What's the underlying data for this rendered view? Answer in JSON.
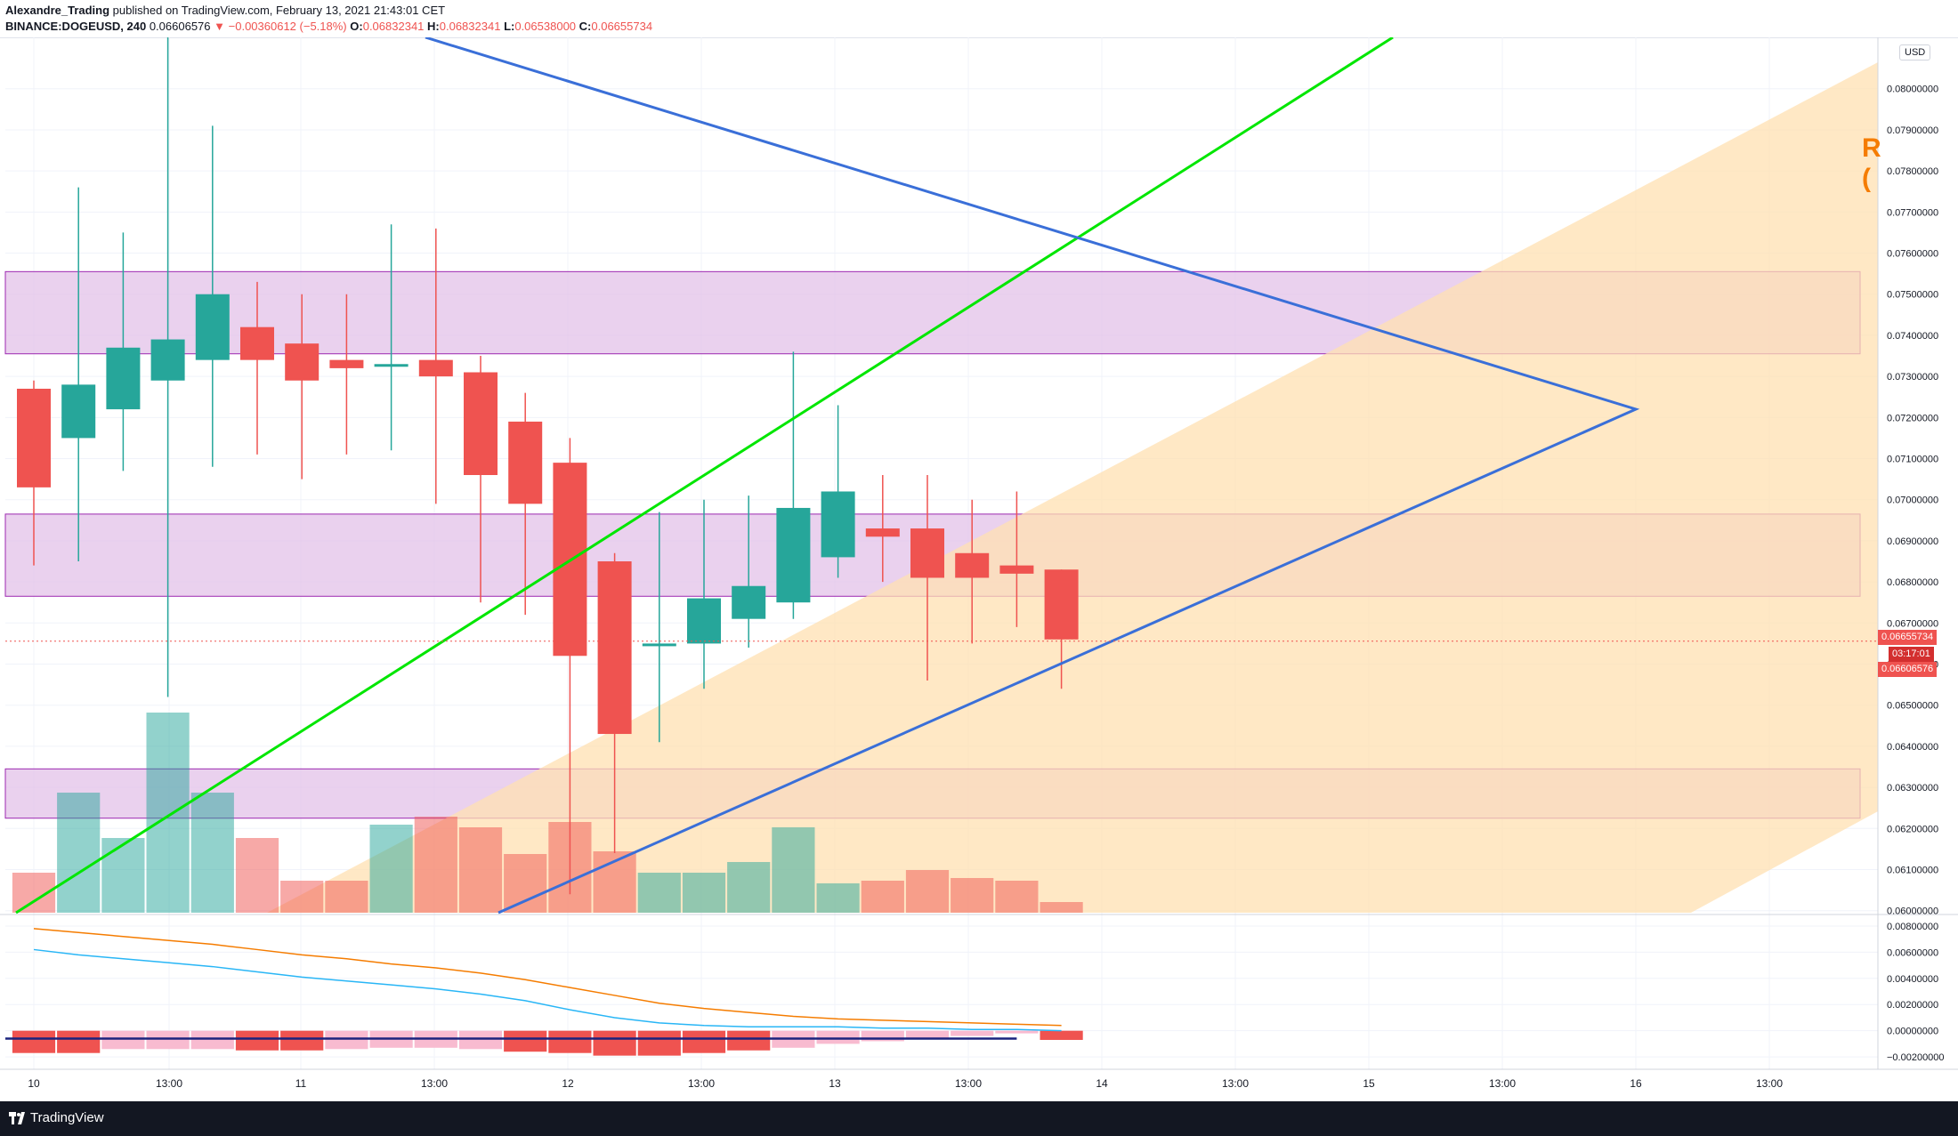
{
  "header": {
    "author": "Alexandre_Trading",
    "published_text": "published on TradingView.com, February 13, 2021 21:43:01 CET",
    "symbol": "BINANCE:DOGEUSD, 240",
    "last": "0.06606576",
    "change": "−0.00360612 (−5.18%)",
    "o_label": "O:",
    "o_value": "0.06832341",
    "h_label": "H:",
    "h_value": "0.06832341",
    "l_label": "L:",
    "l_value": "0.06538000",
    "c_label": "C:",
    "c_value": "0.06655734"
  },
  "currency": "USD",
  "side_label": "R\n(",
  "price_tags": [
    "0.06655734",
    "03:17:01",
    "0.06606576"
  ],
  "footer": {
    "brand": "TradingView"
  },
  "colors": {
    "up": "#26a69a",
    "down": "#ef5350",
    "zone": "#e1bee7",
    "zone_border": "#9c27b0",
    "channel": "#ffe0b2",
    "trend_green": "#00e600",
    "trend_blue": "#3a6fd8",
    "ma_orange": "#f57c00",
    "ma_blue": "#29b6f6"
  },
  "chart_data": {
    "type": "candlestick",
    "price_axis": {
      "min": 0.0599,
      "max": 0.081,
      "ticks": [
        "0.08000000",
        "0.07900000",
        "0.07800000",
        "0.07700000",
        "0.07600000",
        "0.07500000",
        "0.07400000",
        "0.07300000",
        "0.07200000",
        "0.07100000",
        "0.07000000",
        "0.06900000",
        "0.06800000",
        "0.06700000",
        "0.06600000",
        "0.06500000",
        "0.06400000",
        "0.06300000",
        "0.06200000",
        "0.06100000",
        "0.06000000"
      ]
    },
    "time_axis": [
      "10",
      "13:00",
      "11",
      "13:00",
      "12",
      "13:00",
      "13",
      "13:00",
      "14",
      "13:00",
      "15",
      "13:00",
      "16",
      "13:00"
    ],
    "candles": [
      {
        "o": 0.0727,
        "h": 0.0729,
        "l": 0.0684,
        "c": 0.0703
      },
      {
        "o": 0.0715,
        "h": 0.0776,
        "l": 0.0685,
        "c": 0.0728
      },
      {
        "o": 0.0722,
        "h": 0.0765,
        "l": 0.0707,
        "c": 0.0737
      },
      {
        "o": 0.0729,
        "h": 0.0822,
        "l": 0.0652,
        "c": 0.0739
      },
      {
        "o": 0.0734,
        "h": 0.0791,
        "l": 0.0708,
        "c": 0.075
      },
      {
        "o": 0.0742,
        "h": 0.0753,
        "l": 0.0711,
        "c": 0.0734
      },
      {
        "o": 0.0738,
        "h": 0.075,
        "l": 0.0705,
        "c": 0.0729
      },
      {
        "o": 0.0734,
        "h": 0.075,
        "l": 0.0711,
        "c": 0.0732
      },
      {
        "o": 0.0733,
        "h": 0.0767,
        "l": 0.0712,
        "c": 0.0733
      },
      {
        "o": 0.0734,
        "h": 0.0766,
        "l": 0.0699,
        "c": 0.073
      },
      {
        "o": 0.0731,
        "h": 0.0735,
        "l": 0.0675,
        "c": 0.0706
      },
      {
        "o": 0.0719,
        "h": 0.0726,
        "l": 0.0672,
        "c": 0.0699
      },
      {
        "o": 0.0709,
        "h": 0.0715,
        "l": 0.0604,
        "c": 0.0662
      },
      {
        "o": 0.0685,
        "h": 0.0687,
        "l": 0.0614,
        "c": 0.0643
      },
      {
        "o": 0.0665,
        "h": 0.0697,
        "l": 0.0641,
        "c": 0.0665
      },
      {
        "o": 0.0665,
        "h": 0.07,
        "l": 0.0654,
        "c": 0.0676
      },
      {
        "o": 0.0671,
        "h": 0.0701,
        "l": 0.0664,
        "c": 0.0679
      },
      {
        "o": 0.0675,
        "h": 0.0736,
        "l": 0.0671,
        "c": 0.0698
      },
      {
        "o": 0.0686,
        "h": 0.0723,
        "l": 0.0681,
        "c": 0.0702
      },
      {
        "o": 0.0693,
        "h": 0.0706,
        "l": 0.068,
        "c": 0.0691
      },
      {
        "o": 0.0693,
        "h": 0.0706,
        "l": 0.0656,
        "c": 0.0681
      },
      {
        "o": 0.0687,
        "h": 0.07,
        "l": 0.0665,
        "c": 0.0681
      },
      {
        "o": 0.0684,
        "h": 0.0702,
        "l": 0.0669,
        "c": 0.0682
      },
      {
        "o": 0.0683,
        "h": 0.0683,
        "l": 0.0654,
        "c": 0.0666
      }
    ],
    "volume": [
      0.15,
      0.45,
      0.28,
      0.75,
      0.45,
      0.28,
      0.12,
      0.12,
      0.33,
      0.36,
      0.32,
      0.22,
      0.34,
      0.23,
      0.15,
      0.15,
      0.19,
      0.32,
      0.11,
      0.12,
      0.16,
      0.13,
      0.12,
      0.04
    ],
    "zones": [
      [
        0.07355,
        0.07555
      ],
      [
        0.06765,
        0.06965
      ],
      [
        0.06225,
        0.06345
      ]
    ],
    "oscillator": {
      "ticks": [
        "0.00800000",
        "0.00600000",
        "0.00400000",
        "0.00200000",
        "0.00000000",
        "−0.00200000"
      ],
      "min": -0.0024,
      "max": 0.0082,
      "histogram": [
        -0.0017,
        -0.0017,
        -0.0014,
        -0.0014,
        -0.0014,
        -0.0015,
        -0.0015,
        -0.0014,
        -0.0013,
        -0.0013,
        -0.0014,
        -0.0016,
        -0.0017,
        -0.0019,
        -0.0019,
        -0.0017,
        -0.0015,
        -0.0013,
        -0.001,
        -0.0008,
        -0.0006,
        -0.0004,
        -0.0002,
        -0.0007
      ],
      "line_a": [
        0.0062,
        0.0058,
        0.0055,
        0.0052,
        0.0049,
        0.0045,
        0.0041,
        0.0038,
        0.0035,
        0.0032,
        0.0028,
        0.0023,
        0.0016,
        0.001,
        0.0006,
        0.0004,
        0.0003,
        0.0003,
        0.0003,
        0.0002,
        0.0002,
        0.0001,
        0.0001,
        0.0
      ],
      "line_b": [
        0.0078,
        0.0075,
        0.0072,
        0.0069,
        0.0066,
        0.0062,
        0.0058,
        0.0055,
        0.0051,
        0.0048,
        0.0044,
        0.0039,
        0.0033,
        0.0027,
        0.0021,
        0.0017,
        0.0014,
        0.0011,
        0.0009,
        0.0008,
        0.0007,
        0.0006,
        0.0005,
        0.0004
      ]
    }
  }
}
